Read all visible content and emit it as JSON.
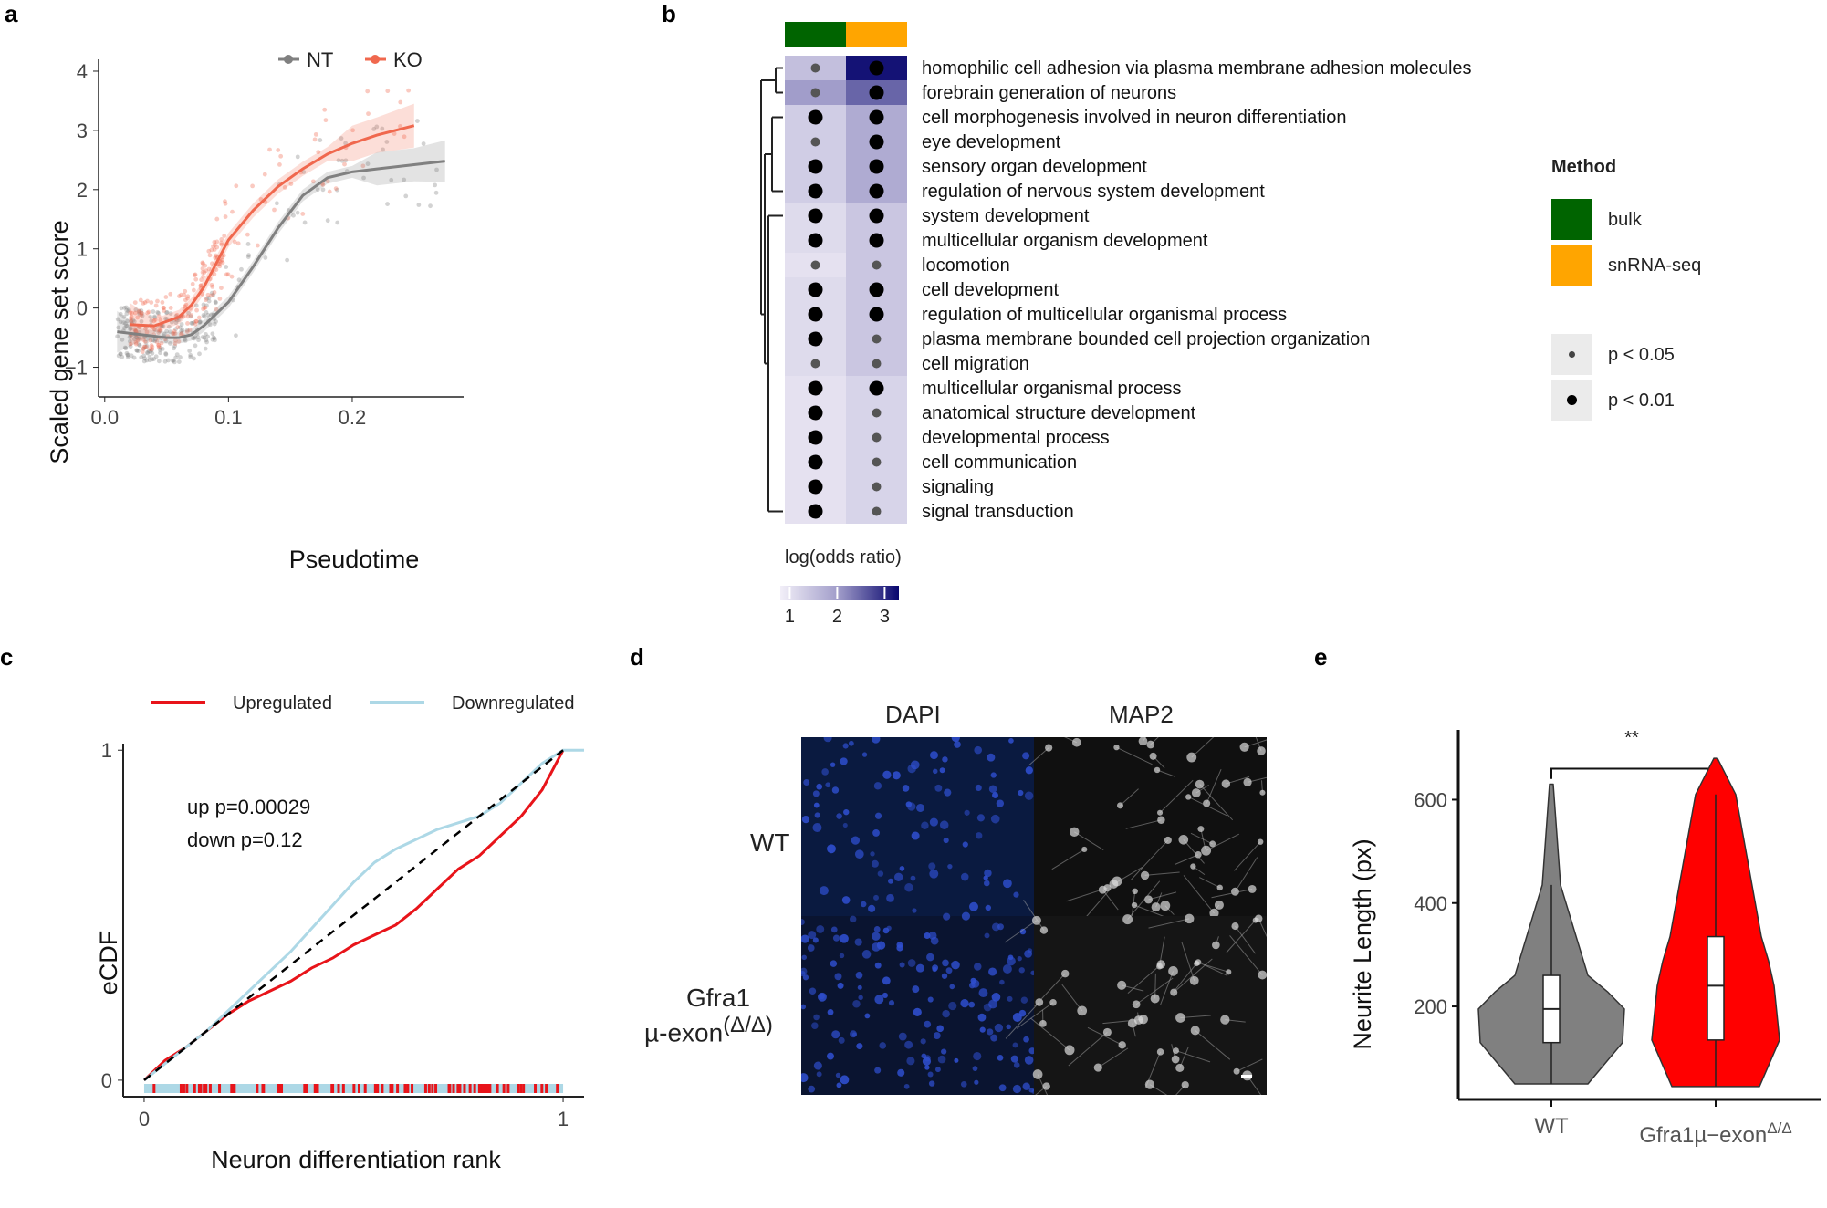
{
  "panels": {
    "a": "a",
    "b": "b",
    "c": "c",
    "d": "d",
    "e": "e"
  },
  "chart_data": [
    {
      "panel": "a",
      "type": "scatter",
      "xlabel": "Pseudotime",
      "ylabel": "Scaled gene set score",
      "xlim": [
        -0.005,
        0.29
      ],
      "ylim": [
        -1.5,
        4.2
      ],
      "xticks": [
        0.0,
        0.1,
        0.2
      ],
      "xtick_labels": [
        "0.0",
        "0.1",
        "0.2"
      ],
      "yticks": [
        -1,
        0,
        1,
        2,
        3,
        4
      ],
      "ytick_labels": [
        "−1",
        "0",
        "1",
        "2",
        "3",
        "4"
      ],
      "legend": {
        "position": "top",
        "entries": [
          "NT",
          "KO"
        ]
      },
      "series": [
        {
          "name": "NT",
          "color": "#808080",
          "smooth_x": [
            0.01,
            0.03,
            0.05,
            0.06,
            0.07,
            0.08,
            0.1,
            0.12,
            0.14,
            0.16,
            0.18,
            0.2,
            0.22,
            0.25,
            0.275
          ],
          "smooth_y": [
            -0.4,
            -0.45,
            -0.5,
            -0.5,
            -0.45,
            -0.3,
            0.1,
            0.7,
            1.35,
            1.9,
            2.2,
            2.3,
            2.35,
            2.42,
            2.48
          ]
        },
        {
          "name": "KO",
          "color": "#F0684E",
          "smooth_x": [
            0.02,
            0.04,
            0.06,
            0.07,
            0.08,
            0.09,
            0.1,
            0.12,
            0.14,
            0.16,
            0.18,
            0.2,
            0.22,
            0.25
          ],
          "smooth_y": [
            -0.28,
            -0.3,
            -0.15,
            0.05,
            0.35,
            0.75,
            1.15,
            1.65,
            2.05,
            2.35,
            2.6,
            2.78,
            2.92,
            3.08
          ]
        }
      ],
      "grid": false
    },
    {
      "panel": "b",
      "type": "heatmap",
      "columns": [
        "bulk",
        "snRNA-seq"
      ],
      "column_colors": [
        "#006400",
        "#FFA500"
      ],
      "rows": [
        {
          "term": "homophilic cell adhesion via plasma membrane adhesion molecules",
          "values": [
            1.5,
            3.2
          ],
          "p": [
            "p < 0.05",
            "p < 0.01"
          ]
        },
        {
          "term": "forebrain generation of neurons",
          "values": [
            2.0,
            2.5
          ],
          "p": [
            "p < 0.05",
            "p < 0.01"
          ]
        },
        {
          "term": "cell morphogenesis involved in neuron differentiation",
          "values": [
            1.3,
            1.8
          ],
          "p": [
            "p < 0.01",
            "p < 0.01"
          ]
        },
        {
          "term": "eye development",
          "values": [
            1.3,
            1.8
          ],
          "p": [
            "p < 0.05",
            "p < 0.01"
          ]
        },
        {
          "term": "sensory organ development",
          "values": [
            1.3,
            1.8
          ],
          "p": [
            "p < 0.01",
            "p < 0.01"
          ]
        },
        {
          "term": "regulation of nervous system development",
          "values": [
            1.3,
            1.8
          ],
          "p": [
            "p < 0.01",
            "p < 0.01"
          ]
        },
        {
          "term": "system development",
          "values": [
            1.1,
            1.4
          ],
          "p": [
            "p < 0.01",
            "p < 0.01"
          ]
        },
        {
          "term": "multicellular organism development",
          "values": [
            1.1,
            1.4
          ],
          "p": [
            "p < 0.01",
            "p < 0.01"
          ]
        },
        {
          "term": "locomotion",
          "values": [
            1.0,
            1.4
          ],
          "p": [
            "p < 0.05",
            "p < 0.05"
          ]
        },
        {
          "term": "cell development",
          "values": [
            1.1,
            1.4
          ],
          "p": [
            "p < 0.01",
            "p < 0.01"
          ]
        },
        {
          "term": "regulation of multicellular organismal process",
          "values": [
            1.1,
            1.4
          ],
          "p": [
            "p < 0.01",
            "p < 0.01"
          ]
        },
        {
          "term": "plasma membrane bounded cell projection organization",
          "values": [
            1.1,
            1.4
          ],
          "p": [
            "p < 0.01",
            "p < 0.05"
          ]
        },
        {
          "term": "cell migration",
          "values": [
            1.1,
            1.4
          ],
          "p": [
            "p < 0.05",
            "p < 0.05"
          ]
        },
        {
          "term": "multicellular organismal process",
          "values": [
            1.0,
            1.2
          ],
          "p": [
            "p < 0.01",
            "p < 0.01"
          ]
        },
        {
          "term": "anatomical structure development",
          "values": [
            1.0,
            1.2
          ],
          "p": [
            "p < 0.01",
            "p < 0.05"
          ]
        },
        {
          "term": "developmental process",
          "values": [
            1.0,
            1.2
          ],
          "p": [
            "p < 0.01",
            "p < 0.05"
          ]
        },
        {
          "term": "cell communication",
          "values": [
            1.0,
            1.2
          ],
          "p": [
            "p < 0.01",
            "p < 0.05"
          ]
        },
        {
          "term": "signaling",
          "values": [
            1.0,
            1.2
          ],
          "p": [
            "p < 0.01",
            "p < 0.05"
          ]
        },
        {
          "term": "signal transduction",
          "values": [
            1.0,
            1.2
          ],
          "p": [
            "p < 0.01",
            "p < 0.05"
          ]
        }
      ],
      "colorbar": {
        "title": "log(odds ratio)",
        "ticks": [
          1,
          2,
          3
        ],
        "tick_labels": [
          "1",
          "2",
          "3"
        ],
        "range": [
          0.8,
          3.3
        ],
        "low_color": "#F2EFF8",
        "high_color": "#08066E"
      },
      "legend": {
        "title": "Method",
        "methods": [
          {
            "label": "bulk",
            "color": "#006400"
          },
          {
            "label": "snRNA-seq",
            "color": "#FFA500"
          }
        ],
        "pvalues": [
          {
            "label": "p < 0.05",
            "size": "small"
          },
          {
            "label": "p < 0.01",
            "size": "large"
          }
        ]
      }
    },
    {
      "panel": "c",
      "type": "line",
      "xlabel": "Neuron differentiation rank",
      "ylabel": "eCDF",
      "xlim": [
        -0.05,
        1.05
      ],
      "ylim": [
        -0.05,
        1.02
      ],
      "xticks": [
        0,
        1
      ],
      "xtick_labels": [
        "0",
        "1"
      ],
      "yticks": [
        0,
        1
      ],
      "ytick_labels": [
        "0",
        "1"
      ],
      "legend": {
        "position": "top",
        "entries": [
          "Upregulated",
          "Downregulated"
        ]
      },
      "annotations": [
        "up p=0.00029",
        "down p=0.12"
      ],
      "series": [
        {
          "name": "Upregulated",
          "color": "#E8141A",
          "x": [
            0,
            0.05,
            0.1,
            0.15,
            0.2,
            0.25,
            0.3,
            0.35,
            0.4,
            0.45,
            0.5,
            0.55,
            0.6,
            0.65,
            0.7,
            0.75,
            0.8,
            0.85,
            0.9,
            0.95,
            1.0
          ],
          "y": [
            0,
            0.06,
            0.1,
            0.15,
            0.2,
            0.24,
            0.27,
            0.3,
            0.34,
            0.37,
            0.41,
            0.44,
            0.47,
            0.52,
            0.58,
            0.64,
            0.68,
            0.74,
            0.8,
            0.88,
            1.0
          ]
        },
        {
          "name": "Downregulated",
          "color": "#ADD8E6",
          "x": [
            0,
            0.05,
            0.1,
            0.15,
            0.2,
            0.25,
            0.3,
            0.35,
            0.4,
            0.45,
            0.5,
            0.55,
            0.6,
            0.65,
            0.7,
            0.75,
            0.8,
            0.85,
            0.9,
            0.95,
            1.0,
            1.05
          ],
          "y": [
            0,
            0.05,
            0.1,
            0.15,
            0.21,
            0.27,
            0.33,
            0.39,
            0.46,
            0.53,
            0.6,
            0.66,
            0.7,
            0.73,
            0.76,
            0.78,
            0.8,
            0.84,
            0.9,
            0.96,
            1.0,
            1.0
          ]
        },
        {
          "name": "",
          "color": "#000000",
          "style": "dashed",
          "x": [
            0,
            1
          ],
          "y": [
            0,
            1
          ]
        }
      ]
    },
    {
      "panel": "e",
      "type": "violin",
      "ylabel": "Neurite Length (px)",
      "categories": [
        "WT",
        "Gfra1µ−exon"
      ],
      "category_superscripts": [
        "",
        "Δ/Δ"
      ],
      "yticks": [
        200,
        400,
        600
      ],
      "ytick_labels": [
        "200",
        "400",
        "600"
      ],
      "ylim": [
        20,
        735
      ],
      "significance": "**",
      "series": [
        {
          "name": "WT",
          "color": "#808080",
          "min": 50,
          "q1": 130,
          "median": 195,
          "q3": 260,
          "whisker_high": 435,
          "max": 630
        },
        {
          "name": "Gfra1µ−exon",
          "color": "#FF0000",
          "min": 45,
          "q1": 135,
          "median": 240,
          "q3": 335,
          "whisker_high": 610,
          "max": 680
        }
      ]
    }
  ],
  "microscopy": {
    "column_labels": [
      "DAPI",
      "MAP2"
    ],
    "row_labels": [
      "WT",
      "Gfra1",
      "µ-exon",
      "(Δ/Δ)"
    ]
  }
}
